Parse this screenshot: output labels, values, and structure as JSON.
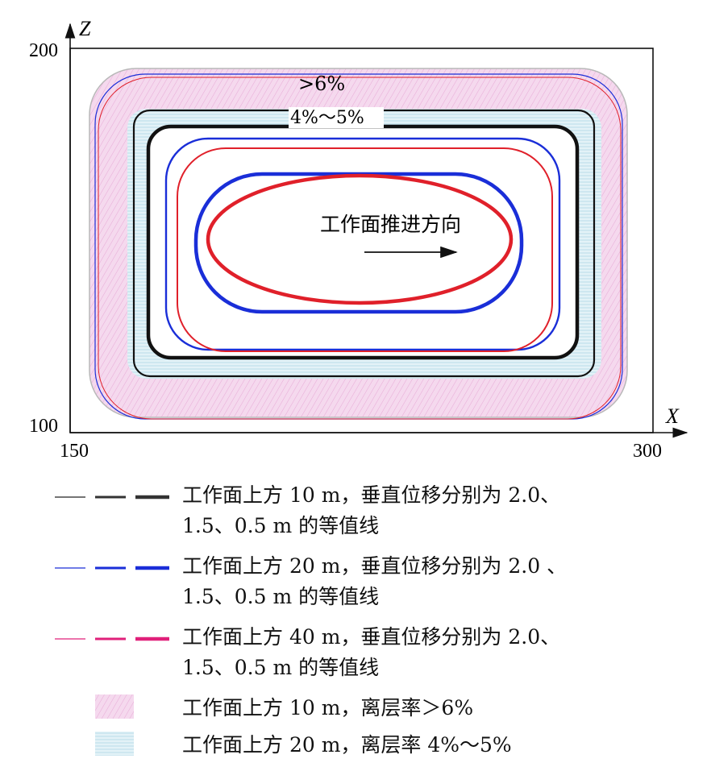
{
  "figure": {
    "axis": {
      "x_label": "X",
      "z_label": "Z",
      "x_min_label": "150",
      "x_max_label": "300",
      "z_min_label": "100",
      "z_max_label": "200"
    },
    "annotations": {
      "region_gt6": ">6%",
      "region_4_5": "4%～5%",
      "direction": "工作面推进方向"
    },
    "colors": {
      "black": "#111111",
      "blue": "#1a2ed8",
      "red": "#e0202a",
      "pink_fill": "#f3d4ec",
      "cyan_fill": "#d8eef5"
    }
  },
  "legend": [
    {
      "line1": "工作面上方 10 m，垂直位移分别为 2.0、",
      "line2": "1.5、0.5 m 的等值线",
      "color": "#222222"
    },
    {
      "line1": "工作面上方 20 m，垂直位移分别为 2.0 、",
      "line2": "1.5、0.5 m 的等值线",
      "color": "#1a2ed8"
    },
    {
      "line1": "工作面上方 40 m，垂直位移分别为 2.0、",
      "line2": "1.5、0.5 m 的等值线",
      "color": "#e0207a"
    },
    {
      "line1": "工作面上方 10 m，离层率＞6%",
      "color": "#f3d4ec"
    },
    {
      "line1": "工作面上方 20 m，离层率 4%～5%",
      "color": "#d8eef5"
    }
  ]
}
